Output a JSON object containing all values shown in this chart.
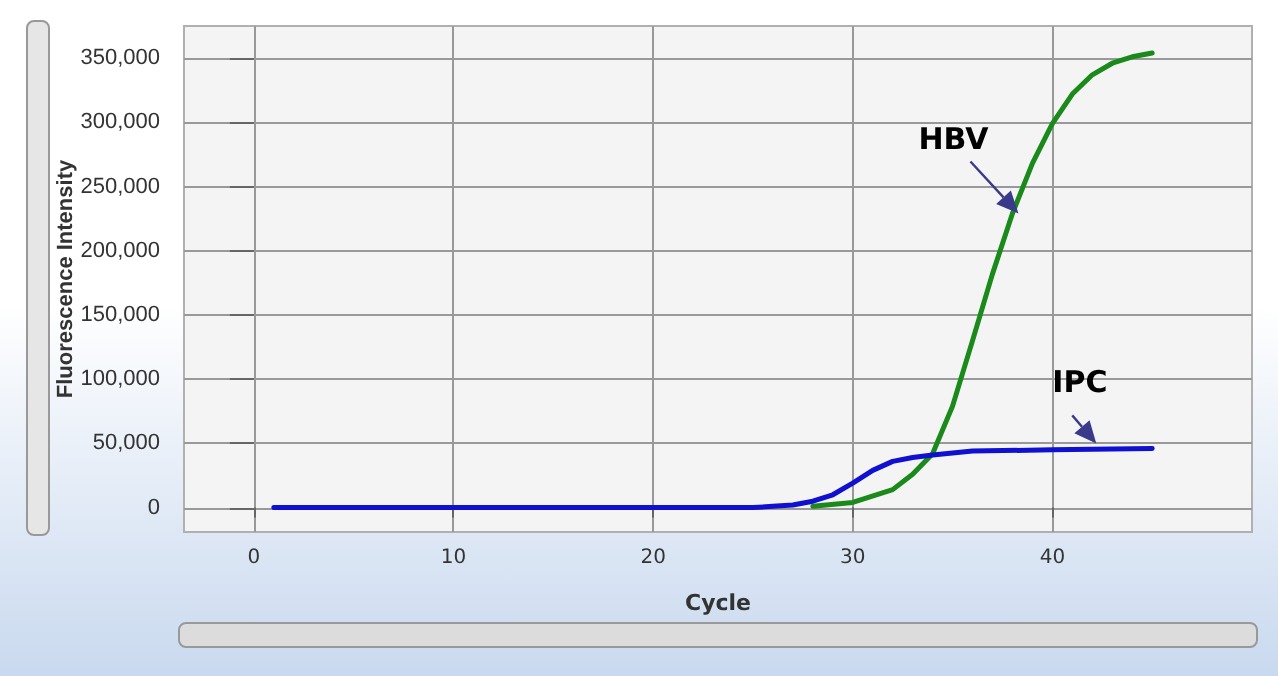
{
  "chart_data": {
    "type": "line",
    "xlabel": "Cycle",
    "ylabel": "Fluorescence Intensity",
    "xlim": [
      -3.5,
      50
    ],
    "xticks": [
      0,
      10,
      20,
      30,
      40
    ],
    "ylim": [
      -19000,
      375000
    ],
    "yticks": [
      0,
      {
        "value": 50000,
        "label": "50,000"
      },
      {
        "value": 100000,
        "label": "100,000"
      },
      {
        "value": 150000,
        "label": "150,000"
      },
      {
        "value": 200000,
        "label": "200,000"
      },
      {
        "value": 250000,
        "label": "250,000"
      },
      {
        "value": 300000,
        "label": "300,000"
      },
      {
        "value": 350000,
        "label": "350,000"
      }
    ],
    "grid": true,
    "marker": "none",
    "line_style": "solid",
    "series": [
      {
        "color": "#1a8a1a",
        "x": [
          28,
          30,
          32,
          33,
          34,
          35,
          36,
          37,
          38,
          39,
          40,
          41,
          42,
          43,
          44,
          45
        ],
        "values": [
          1000,
          4000,
          14000,
          26000,
          42000,
          79000,
          130000,
          182000,
          229000,
          268000,
          299000,
          322000,
          337000,
          346000,
          351000,
          354000
        ]
      },
      {
        "color": "#1010d0",
        "x": [
          1,
          5,
          10,
          15,
          20,
          25,
          26,
          27,
          28,
          29,
          30,
          31,
          32,
          33,
          34,
          36,
          40,
          45
        ],
        "values": [
          0,
          0,
          0,
          0,
          0,
          0,
          1000,
          2000,
          5000,
          10000,
          19000,
          29000,
          36000,
          39000,
          41000,
          44000,
          45000,
          46000
        ]
      }
    ],
    "annotations": [
      {
        "text": "HBV",
        "x": 38.3,
        "y": 229000
      },
      {
        "text": "IPC",
        "x": 42.2,
        "y": 50000
      }
    ]
  }
}
